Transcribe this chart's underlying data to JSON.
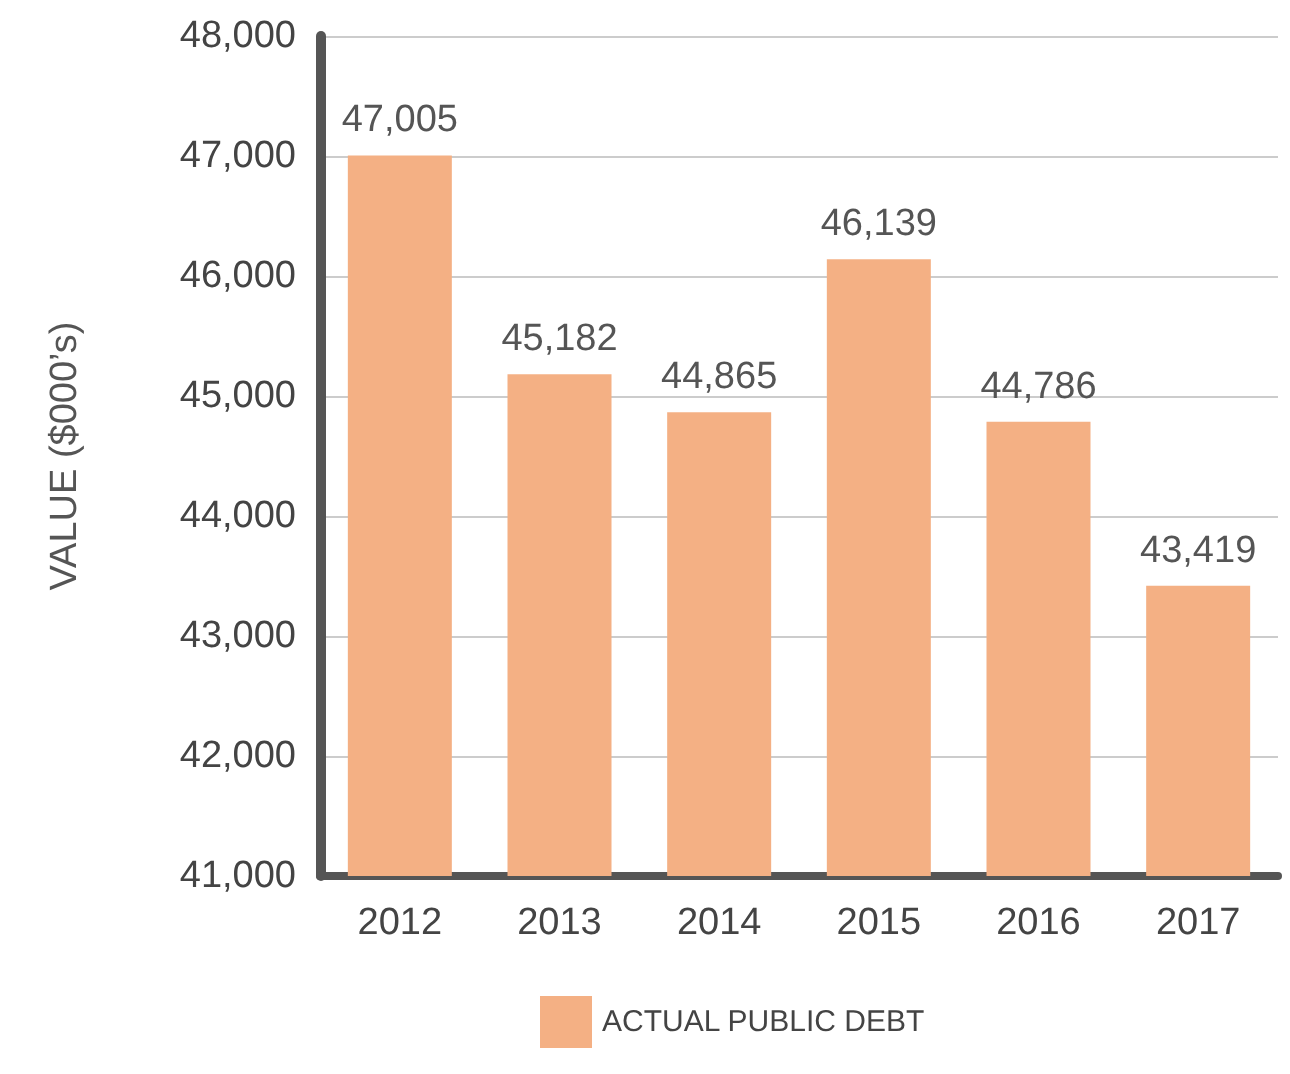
{
  "chart_data": {
    "type": "bar",
    "ylabel": "VALUE ($000’s)",
    "categories": [
      "2012",
      "2013",
      "2014",
      "2015",
      "2016",
      "2017"
    ],
    "series": [
      {
        "name": "ACTUAL PUBLIC DEBT",
        "color": "#f4b084",
        "values": [
          47005,
          45182,
          44865,
          46139,
          44786,
          43419
        ],
        "value_labels": [
          "47,005",
          "45,182",
          "44,865",
          "46,139",
          "44,786",
          "43,419"
        ]
      }
    ],
    "ylim": [
      41000,
      48000
    ],
    "yticks": [
      {
        "value": 41000,
        "label": "41,000"
      },
      {
        "value": 42000,
        "label": "42,000"
      },
      {
        "value": 43000,
        "label": "43,000"
      },
      {
        "value": 44000,
        "label": "44,000"
      },
      {
        "value": 45000,
        "label": "45,000"
      },
      {
        "value": 46000,
        "label": "46,000"
      },
      {
        "value": 47000,
        "label": "47,000"
      },
      {
        "value": 48000,
        "label": "48,000"
      }
    ],
    "grid": "y",
    "legend": "bottom"
  }
}
